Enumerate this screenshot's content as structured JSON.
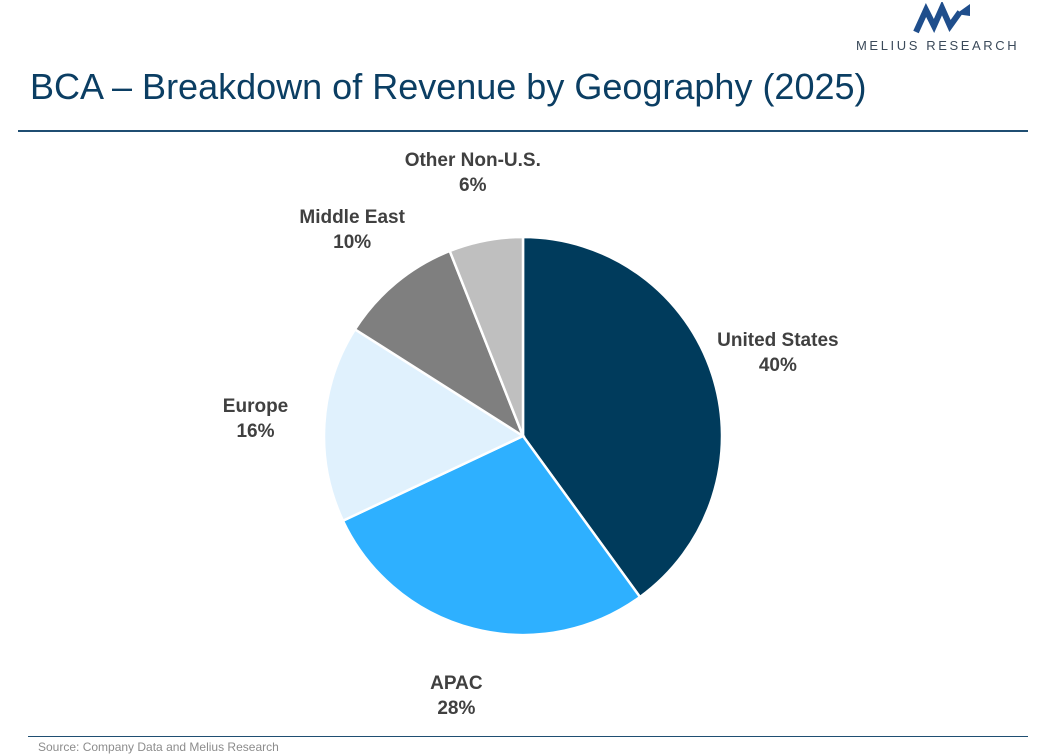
{
  "logo": {
    "text": "MELIUS RESEARCH",
    "icon": "melius-logo-icon",
    "color": "#1f4e8c"
  },
  "header": {
    "title": "BCA – Breakdown of Revenue by Geography (2025)"
  },
  "footer": {
    "source": "Source: Company Data and Melius Research"
  },
  "chart_data": {
    "type": "pie",
    "title": "BCA – Breakdown of Revenue by Geography (2025)",
    "start_angle": "12 o'clock",
    "direction": "clockwise",
    "slices": [
      {
        "label": "United States",
        "value": 40,
        "value_label": "40%",
        "color": "#003b5c"
      },
      {
        "label": "APAC",
        "value": 28,
        "value_label": "28%",
        "color": "#2eb0ff"
      },
      {
        "label": "Europe",
        "value": 16,
        "value_label": "16%",
        "color": "#e0f1fd"
      },
      {
        "label": "Middle East",
        "value": 10,
        "value_label": "10%",
        "color": "#7f7f7f"
      },
      {
        "label": "Other Non-U.S.",
        "value": 6,
        "value_label": "6%",
        "color": "#bfbfbf"
      }
    ]
  }
}
